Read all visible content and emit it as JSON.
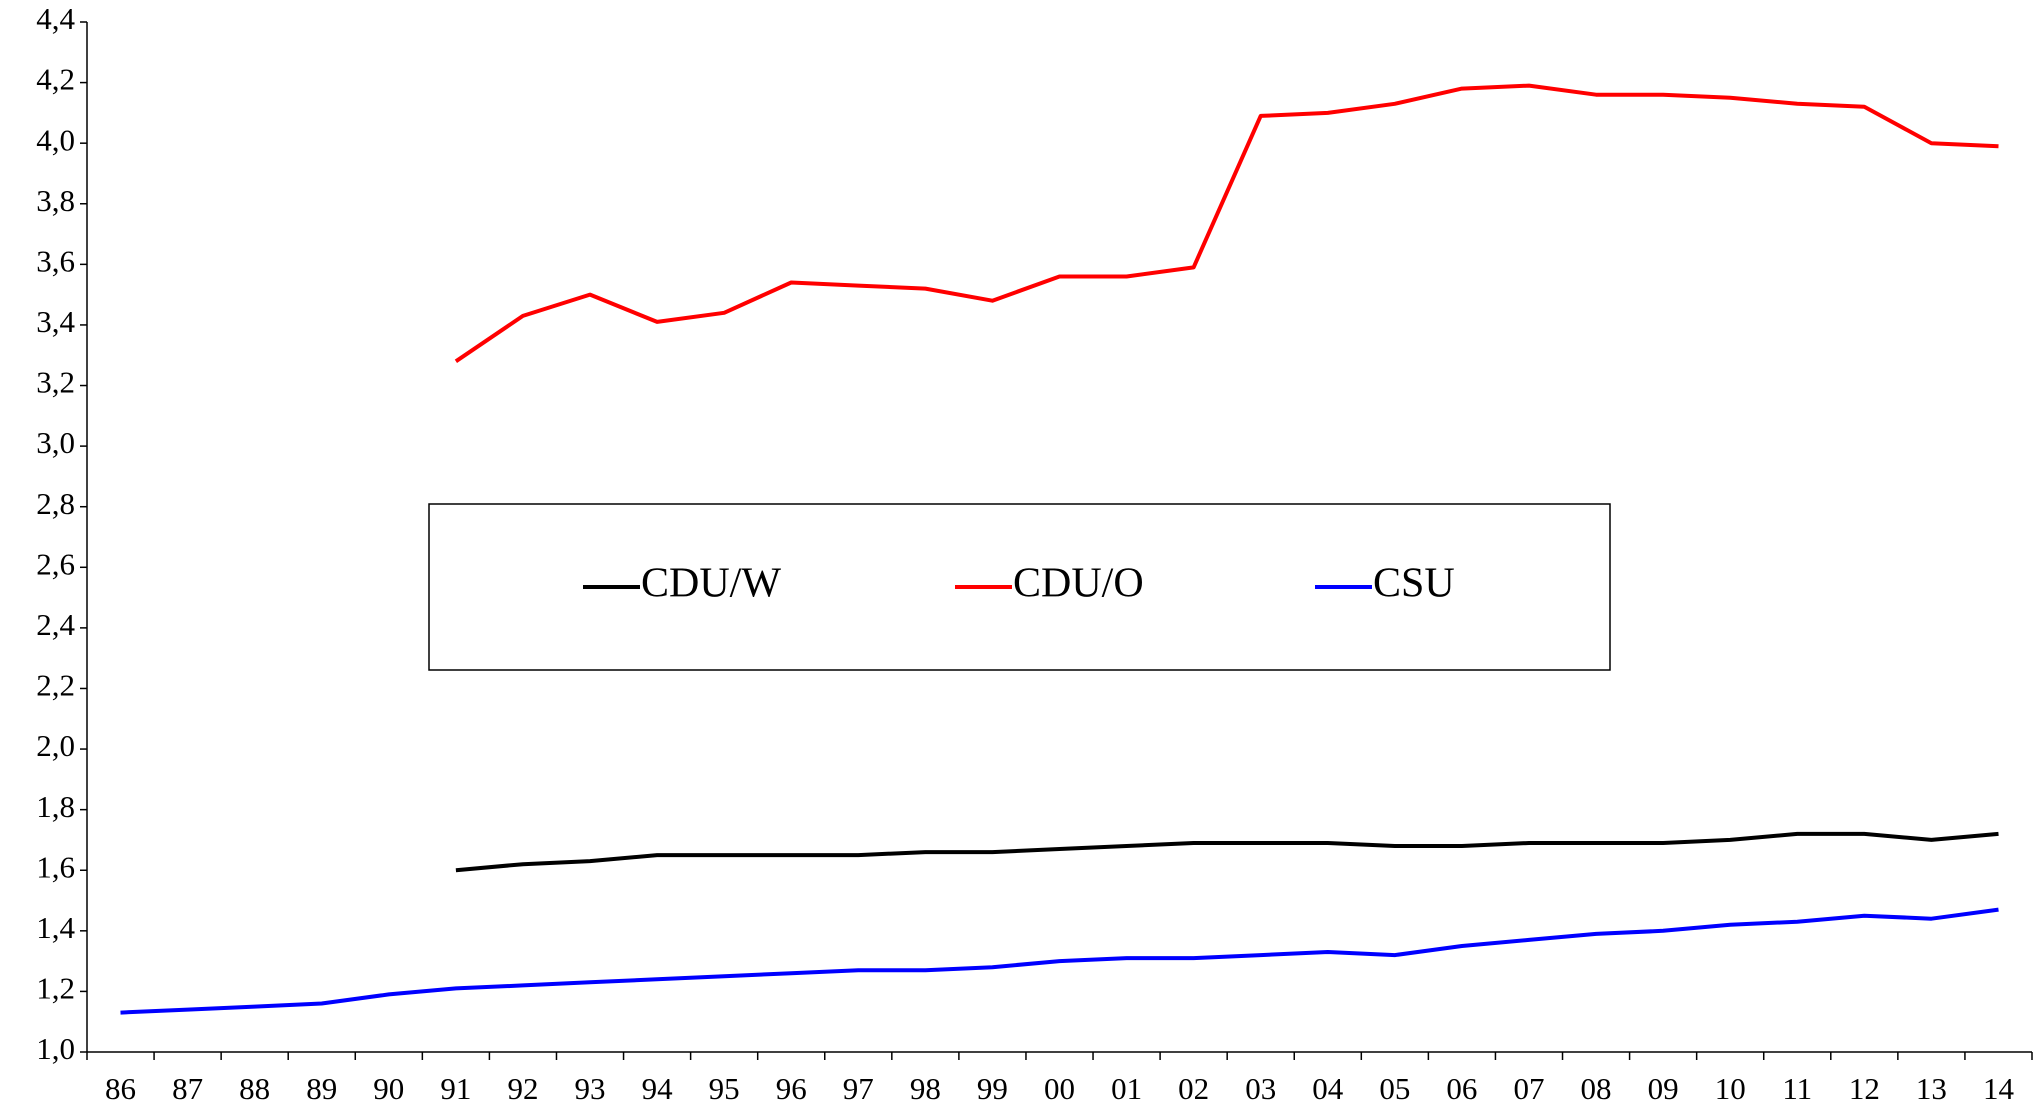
{
  "chart_data": {
    "type": "line",
    "categories": [
      "86",
      "87",
      "88",
      "89",
      "90",
      "91",
      "92",
      "93",
      "94",
      "95",
      "96",
      "97",
      "98",
      "99",
      "00",
      "01",
      "02",
      "03",
      "04",
      "05",
      "06",
      "07",
      "08",
      "09",
      "10",
      "11",
      "12",
      "13",
      "14"
    ],
    "series": [
      {
        "name": "CDU/W",
        "color": "#000000",
        "values": [
          null,
          null,
          null,
          null,
          null,
          1.6,
          1.62,
          1.63,
          1.65,
          1.65,
          1.65,
          1.65,
          1.66,
          1.66,
          1.67,
          1.68,
          1.69,
          1.69,
          1.69,
          1.68,
          1.68,
          1.69,
          1.69,
          1.69,
          1.7,
          1.72,
          1.72,
          1.7,
          1.72
        ]
      },
      {
        "name": "CDU/O",
        "color": "#ff0000",
        "values": [
          null,
          null,
          null,
          null,
          null,
          3.28,
          3.43,
          3.5,
          3.41,
          3.44,
          3.54,
          3.53,
          3.52,
          3.48,
          3.56,
          3.56,
          3.59,
          4.09,
          4.1,
          4.13,
          4.18,
          4.19,
          4.16,
          4.16,
          4.15,
          4.13,
          4.12,
          4.0,
          3.99
        ]
      },
      {
        "name": "CSU",
        "color": "#0000ff",
        "values": [
          1.13,
          1.14,
          1.15,
          1.16,
          1.19,
          1.21,
          1.22,
          1.23,
          1.24,
          1.25,
          1.26,
          1.27,
          1.27,
          1.28,
          1.3,
          1.31,
          1.31,
          1.32,
          1.33,
          1.32,
          1.35,
          1.37,
          1.39,
          1.4,
          1.42,
          1.43,
          1.45,
          1.44,
          1.47
        ]
      }
    ],
    "ylim": [
      1.0,
      4.4
    ],
    "yticks": [
      {
        "value": 1.0,
        "label": "1,0"
      },
      {
        "value": 1.2,
        "label": "1,2"
      },
      {
        "value": 1.4,
        "label": "1,4"
      },
      {
        "value": 1.6,
        "label": "1,6"
      },
      {
        "value": 1.8,
        "label": "1,8"
      },
      {
        "value": 2.0,
        "label": "2,0"
      },
      {
        "value": 2.2,
        "label": "2,2"
      },
      {
        "value": 2.4,
        "label": "2,4"
      },
      {
        "value": 2.6,
        "label": "2,6"
      },
      {
        "value": 2.8,
        "label": "2,8"
      },
      {
        "value": 3.0,
        "label": "3,0"
      },
      {
        "value": 3.2,
        "label": "3,2"
      },
      {
        "value": 3.4,
        "label": "3,4"
      },
      {
        "value": 3.6,
        "label": "3,6"
      },
      {
        "value": 3.8,
        "label": "3,8"
      },
      {
        "value": 4.0,
        "label": "4,0"
      },
      {
        "value": 4.2,
        "label": "4,2"
      },
      {
        "value": 4.4,
        "label": "4,4"
      }
    ],
    "grid": false,
    "legend": "center"
  }
}
